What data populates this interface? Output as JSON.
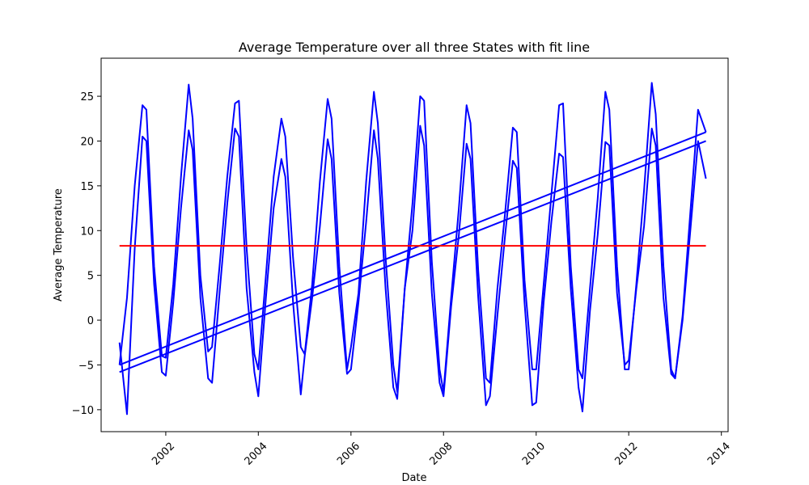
{
  "chart_data": {
    "type": "line",
    "title": "Average Temperature over all three States with fit line",
    "xlabel": "Date",
    "ylabel": "Average Temperature",
    "xlim": [
      "2000-08-09",
      "2014-02-23"
    ],
    "ylim": [
      -12.45,
      29.25
    ],
    "x_ticks": [
      "2002",
      "2004",
      "2006",
      "2008",
      "2010",
      "2012",
      "2014"
    ],
    "y_ticks": [
      -10,
      -5,
      0,
      5,
      10,
      15,
      20,
      25
    ],
    "grid": false,
    "legend": "none",
    "series": [
      {
        "color": "#0000ff",
        "x": [
          "2001-01",
          "2001-03",
          "2001-05",
          "2001-07",
          "2001-08",
          "2001-10",
          "2001-12",
          "2002-01",
          "2002-03",
          "2002-05",
          "2002-07",
          "2002-08",
          "2002-10",
          "2002-12",
          "2003-01",
          "2003-03",
          "2003-05",
          "2003-07",
          "2003-08",
          "2003-10",
          "2003-12",
          "2004-01",
          "2004-03",
          "2004-05",
          "2004-07",
          "2004-08",
          "2004-10",
          "2004-12",
          "2005-01",
          "2005-03",
          "2005-05",
          "2005-07",
          "2005-08",
          "2005-10",
          "2005-12",
          "2006-01",
          "2006-03",
          "2006-05",
          "2006-07",
          "2006-08",
          "2006-10",
          "2006-12",
          "2007-01",
          "2007-03",
          "2007-05",
          "2007-07",
          "2007-08",
          "2007-10",
          "2007-12",
          "2008-01",
          "2008-03",
          "2008-05",
          "2008-07",
          "2008-08",
          "2008-10",
          "2008-12",
          "2009-01",
          "2009-03",
          "2009-05",
          "2009-07",
          "2009-08",
          "2009-10",
          "2009-12",
          "2010-01",
          "2010-03",
          "2010-05",
          "2010-07",
          "2010-08",
          "2010-10",
          "2010-12",
          "2011-01",
          "2011-03",
          "2011-05",
          "2011-07",
          "2011-08",
          "2011-10",
          "2011-12",
          "2012-01",
          "2012-03",
          "2012-05",
          "2012-07",
          "2012-08",
          "2012-10",
          "2012-12",
          "2013-01",
          "2013-03",
          "2013-05",
          "2013-07",
          "2013-09"
        ],
        "values": [
          -5.0,
          2.5,
          15.0,
          24.0,
          23.5,
          6.0,
          -4.0,
          -4.2,
          4.0,
          16.0,
          26.3,
          22.5,
          5.0,
          -3.5,
          -3.0,
          6.0,
          16.0,
          24.2,
          24.5,
          8.0,
          -3.8,
          -5.5,
          5.0,
          16.0,
          22.5,
          20.5,
          7.0,
          -3.0,
          -3.8,
          4.0,
          15.5,
          24.7,
          22.5,
          6.0,
          -5.5,
          -3.0,
          3.0,
          15.5,
          25.5,
          22.0,
          7.0,
          -5.0,
          -8.0,
          3.5,
          13.0,
          25.0,
          24.5,
          6.5,
          -5.5,
          -8.0,
          2.5,
          12.5,
          24.0,
          22.0,
          5.5,
          -6.5,
          -7.0,
          3.5,
          12.0,
          21.5,
          21.0,
          4.5,
          -5.5,
          -5.5,
          4.0,
          14.0,
          24.0,
          24.2,
          6.0,
          -5.5,
          -6.5,
          3.5,
          13.5,
          25.5,
          23.5,
          6.0,
          -5.5,
          -5.5,
          4.0,
          14.5,
          26.5,
          23.0,
          6.0,
          -5.5,
          -6.5,
          0.5,
          12.0,
          23.5,
          21.0
        ]
      },
      {
        "color": "#0000ff",
        "x": [
          "2001-01",
          "2001-03",
          "2001-05",
          "2001-07",
          "2001-08",
          "2001-10",
          "2001-12",
          "2002-01",
          "2002-03",
          "2002-05",
          "2002-07",
          "2002-08",
          "2002-10",
          "2002-12",
          "2003-01",
          "2003-03",
          "2003-05",
          "2003-07",
          "2003-08",
          "2003-10",
          "2003-12",
          "2004-01",
          "2004-03",
          "2004-05",
          "2004-07",
          "2004-08",
          "2004-10",
          "2004-12",
          "2005-01",
          "2005-03",
          "2005-05",
          "2005-07",
          "2005-08",
          "2005-10",
          "2005-12",
          "2006-01",
          "2006-03",
          "2006-05",
          "2006-07",
          "2006-08",
          "2006-10",
          "2006-12",
          "2007-01",
          "2007-03",
          "2007-05",
          "2007-07",
          "2007-08",
          "2007-10",
          "2007-12",
          "2008-01",
          "2008-03",
          "2008-05",
          "2008-07",
          "2008-08",
          "2008-10",
          "2008-12",
          "2009-01",
          "2009-03",
          "2009-05",
          "2009-07",
          "2009-08",
          "2009-10",
          "2009-12",
          "2010-01",
          "2010-03",
          "2010-05",
          "2010-07",
          "2010-08",
          "2010-10",
          "2010-12",
          "2011-01",
          "2011-03",
          "2011-05",
          "2011-07",
          "2011-08",
          "2011-10",
          "2011-12",
          "2012-01",
          "2012-03",
          "2012-05",
          "2012-07",
          "2012-08",
          "2012-10",
          "2012-12",
          "2013-01",
          "2013-03",
          "2013-05",
          "2013-07",
          "2013-09"
        ],
        "values": [
          -2.5,
          -10.5,
          8.0,
          20.5,
          20.0,
          4.0,
          -5.8,
          -6.2,
          2.0,
          12.5,
          21.2,
          19.0,
          2.5,
          -6.5,
          -7.0,
          3.0,
          13.0,
          21.4,
          20.5,
          3.5,
          -5.8,
          -8.5,
          2.5,
          12.5,
          18.0,
          16.0,
          2.0,
          -8.3,
          -4.0,
          2.5,
          10.5,
          20.2,
          18.0,
          3.0,
          -6.0,
          -5.5,
          2.0,
          11.0,
          21.2,
          18.0,
          3.5,
          -7.5,
          -8.8,
          3.5,
          10.0,
          21.7,
          19.5,
          3.0,
          -7.0,
          -8.5,
          1.5,
          9.5,
          19.7,
          18.0,
          2.5,
          -9.5,
          -8.5,
          0.5,
          9.5,
          17.8,
          17.0,
          2.0,
          -9.5,
          -9.2,
          2.0,
          11.0,
          18.6,
          18.2,
          3.5,
          -7.5,
          -10.2,
          1.0,
          9.5,
          19.9,
          19.5,
          3.0,
          -5.0,
          -4.5,
          3.5,
          10.5,
          21.4,
          19.5,
          2.5,
          -6.0,
          -6.5,
          0.0,
          10.0,
          20.0,
          15.8
        ]
      },
      {
        "color": "#0000ff",
        "x": [
          "2001-01",
          "2013-09"
        ],
        "values": [
          -5.0,
          21.0
        ]
      },
      {
        "color": "#0000ff",
        "x": [
          "2001-01",
          "2013-09"
        ],
        "values": [
          -5.8,
          20.0
        ]
      },
      {
        "color": "#ff0000",
        "x": [
          "2001-01",
          "2013-09"
        ],
        "values": [
          8.3,
          8.3
        ]
      }
    ]
  }
}
